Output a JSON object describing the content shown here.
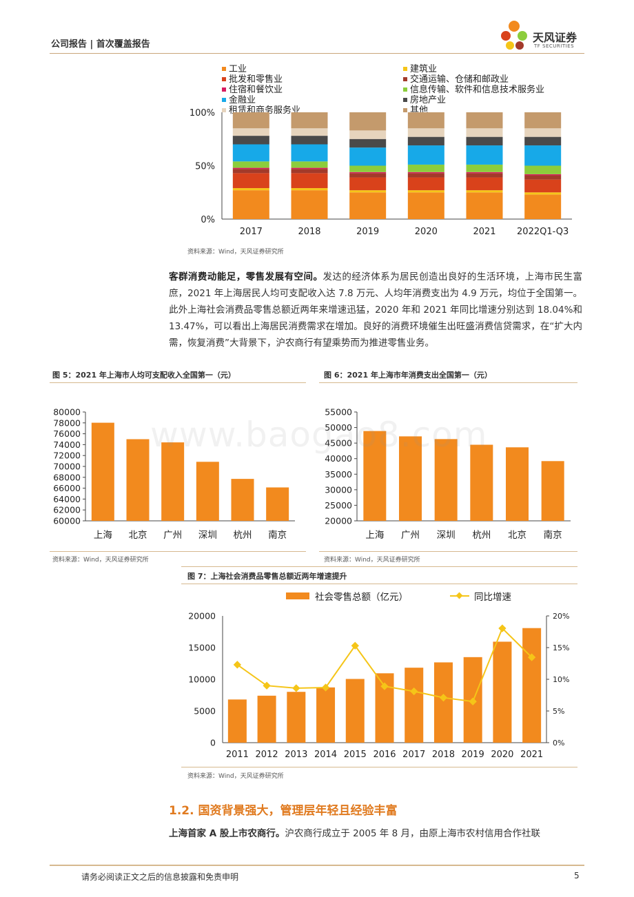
{
  "header": {
    "text": "公司报告 | 首次覆盖报告",
    "logo_cn": "天风证券",
    "logo_en": "TF SECURITIES"
  },
  "colors": {
    "accent": "#f28a1e",
    "rule": "#d6b88e",
    "section": "#e07a1f",
    "line_series": "#f5c518"
  },
  "chart_data": [
    {
      "type": "bar",
      "subtype": "stacked-percent",
      "categories": [
        "2017",
        "2018",
        "2019",
        "2020",
        "2021",
        "2022Q1-Q3"
      ],
      "yticks": [
        "0%",
        "50%",
        "100%"
      ],
      "ylim": [
        0,
        100
      ],
      "series": [
        {
          "name": "工业",
          "color": "#f28a1e",
          "values": [
            27,
            27,
            25,
            25,
            25,
            23
          ]
        },
        {
          "name": "建筑业",
          "color": "#f5c518",
          "values": [
            2,
            2,
            2,
            2,
            2,
            2
          ]
        },
        {
          "name": "批发和零售业",
          "color": "#d9421b",
          "values": [
            14,
            14,
            12,
            12,
            12,
            12
          ]
        },
        {
          "name": "交通运输、仓储和邮政业",
          "color": "#a33a2a",
          "values": [
            4,
            4,
            4,
            4,
            4,
            4
          ]
        },
        {
          "name": "住宿和餐饮业",
          "color": "#d81b60",
          "values": [
            1,
            1,
            1,
            1,
            1,
            1
          ]
        },
        {
          "name": "信息传输、软件和信息技术服务业",
          "color": "#8ccd3c",
          "values": [
            6,
            6,
            6,
            7,
            7,
            8
          ]
        },
        {
          "name": "金融业",
          "color": "#17a9e8",
          "values": [
            16,
            16,
            17,
            18,
            18,
            19
          ]
        },
        {
          "name": "房地产业",
          "color": "#4a4a4a",
          "values": [
            8,
            8,
            8,
            8,
            8,
            8
          ]
        },
        {
          "name": "租赁和商务服务业",
          "color": "#e6d4bd",
          "values": [
            7,
            7,
            8,
            8,
            8,
            8
          ]
        },
        {
          "name": "其他",
          "color": "#c49a6c",
          "values": [
            15,
            15,
            17,
            15,
            15,
            15
          ]
        }
      ],
      "source": "资料来源：Wind，天风证券研究所"
    },
    {
      "type": "bar",
      "title": "图 5：2021 年上海市人均可支配收入全国第一（元）",
      "categories": [
        "上海",
        "北京",
        "广州",
        "深圳",
        "杭州",
        "南京"
      ],
      "values": [
        78027,
        75002,
        74416,
        70847,
        67709,
        66140
      ],
      "ylim": [
        60000,
        80000
      ],
      "yticks": [
        60000,
        62000,
        64000,
        66000,
        68000,
        70000,
        72000,
        74000,
        76000,
        78000,
        80000
      ],
      "source": "资料来源：Wind，天风证券研究所"
    },
    {
      "type": "bar",
      "title": "图 6：2021 年上海市年消费支出全国第一（元）",
      "categories": [
        "上海",
        "广州",
        "深圳",
        "杭州",
        "北京",
        "南京"
      ],
      "values": [
        48879,
        47162,
        46286,
        44467,
        43640,
        39208
      ],
      "ylim": [
        20000,
        55000
      ],
      "yticks": [
        20000,
        25000,
        30000,
        35000,
        40000,
        45000,
        50000,
        55000
      ],
      "source": "资料来源：Wind，天风证券研究所"
    },
    {
      "type": "bar+line",
      "title": "图 7：上海社会消费品零售总额近两年增速提升",
      "categories": [
        "2011",
        "2012",
        "2013",
        "2014",
        "2015",
        "2016",
        "2017",
        "2018",
        "2019",
        "2020",
        "2021"
      ],
      "series": [
        {
          "name": "社会零售总额（亿元）",
          "type": "bar",
          "axis": "left",
          "values": [
            6815,
            7412,
            8019,
            8718,
            10055,
            10947,
            11830,
            12669,
            13497,
            15933,
            18079
          ]
        },
        {
          "name": "同比增速",
          "type": "line",
          "axis": "right",
          "values": [
            12.3,
            9.0,
            8.6,
            8.7,
            15.3,
            8.9,
            8.1,
            7.1,
            6.5,
            18.04,
            13.47
          ]
        }
      ],
      "ylim_left": [
        0,
        20000
      ],
      "yticks_left": [
        0,
        5000,
        10000,
        15000,
        20000
      ],
      "ylim_right": [
        0,
        20
      ],
      "yticks_right": [
        "0%",
        "5%",
        "10%",
        "15%",
        "20%"
      ],
      "source": "资料来源：Wind，天风证券研究所"
    }
  ],
  "paragraph1": {
    "bold": "客群消费动能足，零售发展有空间。",
    "text": "发达的经济体系为居民创造出良好的生活环境，上海市民生富庶，2021 年上海居民人均可支配收入达 7.8 万元、人均年消费支出为 4.9 万元，均位于全国第一。此外上海社会消费品零售总额近两年来增速迅猛，2020 年和 2021 年同比增速分别达到 18.04%和 13.47%，可以看出上海居民消费需求在增加。良好的消费环境催生出旺盛消费信贷需求，在“扩大内需，恢复消费”大背景下，沪农商行有望乘势而为推进零售业务。"
  },
  "section_title": "1.2. 国资背景强大，管理层年轻且经验丰富",
  "paragraph2": {
    "bold": "上海首家 A 股上市农商行。",
    "text": "沪农商行成立于 2005 年 8 月，由原上海市农村信用合作社联"
  },
  "footer": {
    "disclaimer": "请务必阅读正文之后的信息披露和免责申明",
    "page": "5"
  },
  "watermark": "www.baogao8.com"
}
